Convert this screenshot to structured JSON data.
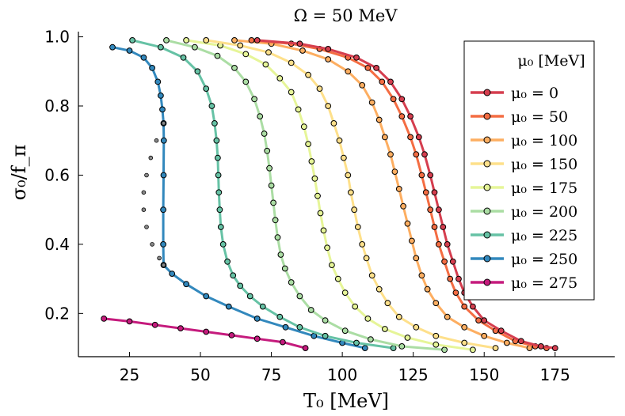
{
  "chart_data": {
    "type": "line",
    "title": "Ω = 50 MeV",
    "xlabel": "T₀ [MeV]",
    "ylabel": "σ₀/f_π",
    "xlim": [
      7,
      196
    ],
    "ylim": [
      0.075,
      1.015
    ],
    "xticks": [
      25,
      50,
      75,
      100,
      125,
      150,
      175
    ],
    "yticks": [
      0.2,
      0.4,
      0.6,
      0.8,
      1.0
    ],
    "xtick_labels": [
      "25",
      "50",
      "75",
      "100",
      "125",
      "150",
      "175"
    ],
    "ytick_labels": [
      "0.2",
      "0.4",
      "0.6",
      "0.8",
      "1.0"
    ],
    "grid": false,
    "legend_title": "μ₀ [MeV]",
    "legend_position": "top-right",
    "series": [
      {
        "name": "μ₀ = 0",
        "color": "#d53e4f",
        "points": [
          [
            70,
            0.99
          ],
          [
            85,
            0.98
          ],
          [
            95,
            0.965
          ],
          [
            105,
            0.94
          ],
          [
            112,
            0.91
          ],
          [
            117,
            0.87
          ],
          [
            121,
            0.82
          ],
          [
            124,
            0.77
          ],
          [
            127,
            0.71
          ],
          [
            129,
            0.66
          ],
          [
            131,
            0.6
          ],
          [
            132.5,
            0.55
          ],
          [
            134,
            0.5
          ],
          [
            135.5,
            0.45
          ],
          [
            137,
            0.4
          ],
          [
            139,
            0.35
          ],
          [
            141,
            0.3
          ],
          [
            143,
            0.26
          ],
          [
            146,
            0.22
          ],
          [
            150,
            0.18
          ],
          [
            156,
            0.15
          ],
          [
            163,
            0.12
          ],
          [
            170,
            0.105
          ],
          [
            175,
            0.1
          ]
        ]
      },
      {
        "name": "μ₀ = 50",
        "color": "#f46d43",
        "points": [
          [
            68,
            0.99
          ],
          [
            82,
            0.98
          ],
          [
            92,
            0.965
          ],
          [
            102,
            0.94
          ],
          [
            109,
            0.91
          ],
          [
            114,
            0.87
          ],
          [
            118,
            0.82
          ],
          [
            121,
            0.77
          ],
          [
            124,
            0.71
          ],
          [
            126,
            0.66
          ],
          [
            128,
            0.6
          ],
          [
            129.5,
            0.55
          ],
          [
            131,
            0.5
          ],
          [
            132.5,
            0.45
          ],
          [
            134,
            0.4
          ],
          [
            136,
            0.35
          ],
          [
            138,
            0.3
          ],
          [
            140,
            0.26
          ],
          [
            143,
            0.22
          ],
          [
            148,
            0.18
          ],
          [
            154,
            0.15
          ],
          [
            161,
            0.12
          ],
          [
            168,
            0.105
          ],
          [
            172,
            0.1
          ]
        ]
      },
      {
        "name": "μ₀ = 100",
        "color": "#fdae61",
        "points": [
          [
            62,
            0.99
          ],
          [
            75,
            0.98
          ],
          [
            86,
            0.96
          ],
          [
            95,
            0.935
          ],
          [
            102,
            0.9
          ],
          [
            107,
            0.86
          ],
          [
            110.5,
            0.81
          ],
          [
            113,
            0.76
          ],
          [
            115,
            0.71
          ],
          [
            117,
            0.66
          ],
          [
            118.5,
            0.61
          ],
          [
            120,
            0.56
          ],
          [
            121.5,
            0.51
          ],
          [
            123,
            0.46
          ],
          [
            124.5,
            0.41
          ],
          [
            126,
            0.36
          ],
          [
            128,
            0.31
          ],
          [
            130,
            0.27
          ],
          [
            133,
            0.23
          ],
          [
            137,
            0.19
          ],
          [
            143,
            0.16
          ],
          [
            150,
            0.135
          ],
          [
            158,
            0.115
          ],
          [
            166,
            0.1
          ]
        ]
      },
      {
        "name": "μ₀ = 150",
        "color": "#fee08b",
        "points": [
          [
            52,
            0.99
          ],
          [
            64,
            0.975
          ],
          [
            74,
            0.955
          ],
          [
            82,
            0.925
          ],
          [
            88,
            0.89
          ],
          [
            92,
            0.85
          ],
          [
            95,
            0.8
          ],
          [
            97,
            0.75
          ],
          [
            99,
            0.7
          ],
          [
            100.5,
            0.65
          ],
          [
            102,
            0.6
          ],
          [
            103,
            0.55
          ],
          [
            104.2,
            0.5
          ],
          [
            105.5,
            0.45
          ],
          [
            107,
            0.4
          ],
          [
            108.5,
            0.36
          ],
          [
            110.5,
            0.31
          ],
          [
            113,
            0.27
          ],
          [
            116,
            0.23
          ],
          [
            120,
            0.19
          ],
          [
            126,
            0.16
          ],
          [
            133,
            0.135
          ],
          [
            143,
            0.115
          ],
          [
            154,
            0.1
          ]
        ]
      },
      {
        "name": "μ₀ = 175",
        "color": "#e6f598",
        "points": [
          [
            45,
            0.99
          ],
          [
            57,
            0.975
          ],
          [
            66,
            0.95
          ],
          [
            73,
            0.92
          ],
          [
            78,
            0.88
          ],
          [
            82,
            0.84
          ],
          [
            84.5,
            0.79
          ],
          [
            86.5,
            0.74
          ],
          [
            88,
            0.69
          ],
          [
            89.2,
            0.64
          ],
          [
            90.3,
            0.59
          ],
          [
            91.3,
            0.54
          ],
          [
            92.3,
            0.49
          ],
          [
            93.4,
            0.44
          ],
          [
            94.7,
            0.39
          ],
          [
            96.3,
            0.34
          ],
          [
            98.5,
            0.3
          ],
          [
            101,
            0.26
          ],
          [
            104.5,
            0.22
          ],
          [
            109,
            0.185
          ],
          [
            115,
            0.155
          ],
          [
            123,
            0.13
          ],
          [
            133,
            0.11
          ],
          [
            146,
            0.095
          ]
        ]
      },
      {
        "name": "μ₀ = 200",
        "color": "#abdda4",
        "points": [
          [
            38,
            0.99
          ],
          [
            48,
            0.97
          ],
          [
            56,
            0.945
          ],
          [
            62,
            0.91
          ],
          [
            66,
            0.87
          ],
          [
            69,
            0.82
          ],
          [
            71,
            0.77
          ],
          [
            72.5,
            0.72
          ],
          [
            73.5,
            0.67
          ],
          [
            74.3,
            0.62
          ],
          [
            75,
            0.57
          ],
          [
            75.7,
            0.52
          ],
          [
            76.4,
            0.47
          ],
          [
            77.2,
            0.42
          ],
          [
            78.3,
            0.37
          ],
          [
            79.8,
            0.33
          ],
          [
            82,
            0.29
          ],
          [
            85,
            0.25
          ],
          [
            89,
            0.21
          ],
          [
            94,
            0.18
          ],
          [
            101,
            0.15
          ],
          [
            110,
            0.125
          ],
          [
            121,
            0.105
          ],
          [
            136,
            0.095
          ]
        ]
      },
      {
        "name": "μ₀ = 225",
        "color": "#66c2a5",
        "points": [
          [
            26,
            0.99
          ],
          [
            36,
            0.97
          ],
          [
            44,
            0.94
          ],
          [
            49,
            0.9
          ],
          [
            52,
            0.85
          ],
          [
            54,
            0.8
          ],
          [
            55,
            0.75
          ],
          [
            55.7,
            0.7
          ],
          [
            56.1,
            0.65
          ],
          [
            56.3,
            0.6
          ],
          [
            56.5,
            0.55
          ],
          [
            56.8,
            0.5
          ],
          [
            57.2,
            0.45
          ],
          [
            58,
            0.4
          ],
          [
            59.5,
            0.35
          ],
          [
            61.5,
            0.31
          ],
          [
            64,
            0.28
          ],
          [
            67.5,
            0.25
          ],
          [
            72,
            0.22
          ],
          [
            78,
            0.19
          ],
          [
            85,
            0.16
          ],
          [
            94,
            0.135
          ],
          [
            105,
            0.115
          ],
          [
            118,
            0.1
          ]
        ]
      },
      {
        "name": "μ₀ = 250",
        "color": "#3288bd",
        "points": [
          [
            19,
            0.97
          ],
          [
            25,
            0.96
          ],
          [
            30,
            0.94
          ],
          [
            33,
            0.91
          ],
          [
            35,
            0.87
          ],
          [
            36,
            0.83
          ],
          [
            36.6,
            0.79
          ],
          [
            37,
            0.75
          ],
          [
            37.1,
            0.7
          ],
          [
            37,
            0.6
          ],
          [
            36.9,
            0.5
          ],
          [
            36.9,
            0.4
          ],
          [
            37,
            0.34
          ],
          [
            40,
            0.315
          ],
          [
            45,
            0.285
          ],
          [
            52,
            0.25
          ],
          [
            60,
            0.22
          ],
          [
            70,
            0.185
          ],
          [
            80,
            0.16
          ],
          [
            90,
            0.135
          ],
          [
            100,
            0.115
          ],
          [
            108,
            0.1
          ]
        ]
      },
      {
        "name": "μ₀ = 275",
        "color": "#c51b7d",
        "points": [
          [
            16,
            0.185
          ],
          [
            25,
            0.177
          ],
          [
            34,
            0.167
          ],
          [
            43,
            0.157
          ],
          [
            52,
            0.147
          ],
          [
            61,
            0.137
          ],
          [
            70,
            0.127
          ],
          [
            79,
            0.117
          ],
          [
            87,
            0.1
          ]
        ]
      }
    ],
    "unstable_branch": {
      "color": "#888888",
      "points": [
        [
          37,
          0.75
        ],
        [
          34.5,
          0.7
        ],
        [
          32.5,
          0.65
        ],
        [
          31,
          0.6
        ],
        [
          30,
          0.55
        ],
        [
          30,
          0.5
        ],
        [
          31,
          0.45
        ],
        [
          33,
          0.4
        ],
        [
          35.5,
          0.36
        ],
        [
          37,
          0.34
        ]
      ]
    }
  }
}
